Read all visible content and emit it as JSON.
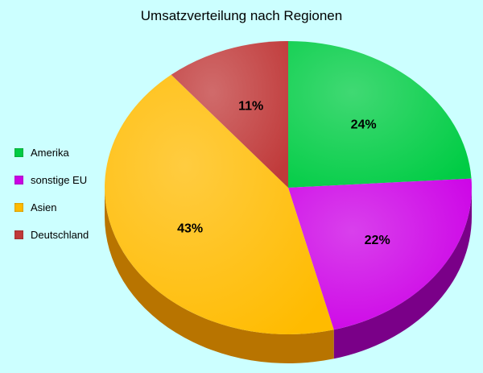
{
  "chart_data": {
    "type": "pie",
    "title": "Umsatzverteilung nach Regionen",
    "slices": [
      {
        "name": "Amerika",
        "value": 24,
        "label": "24%",
        "color": "#00cc44",
        "side": "#008a2e"
      },
      {
        "name": "sonstige EU",
        "value": 22,
        "label": "22%",
        "color": "#cc00e6",
        "side": "#7a0088"
      },
      {
        "name": "Asien",
        "value": 43,
        "label": "43%",
        "color": "#ffbb00",
        "side": "#b87400"
      },
      {
        "name": "Deutschland",
        "value": 11,
        "label": "11%",
        "color": "#c03a3a",
        "side": "#7a2020"
      }
    ],
    "legend_position": "left",
    "three_d": true
  }
}
